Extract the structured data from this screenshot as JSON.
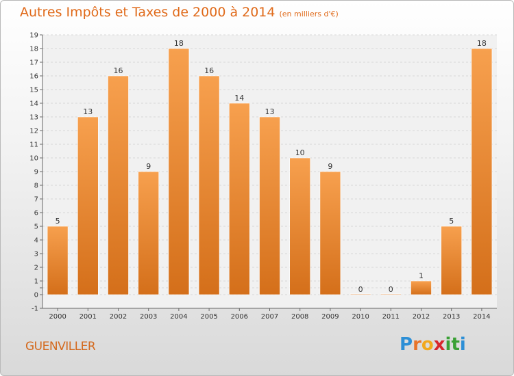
{
  "title": "Autres Impôts et Taxes de 2000 à 2014",
  "unit": "(en milliers d'€)",
  "commune": "GUENVILLER",
  "brand": {
    "letters": [
      "P",
      "r",
      "o",
      "x",
      "i",
      "t",
      "i"
    ],
    "colors": [
      "#2d8fd6",
      "#e8742a",
      "#f2a81e",
      "#d7262d",
      "#3aa035",
      "#3aa035",
      "#2d8fd6"
    ]
  },
  "colors": {
    "bar_light": "#f7a04e",
    "bar_dark": "#d46f1a",
    "title": "#e06a1a"
  },
  "chart_data": {
    "type": "bar",
    "categories": [
      "2000",
      "2001",
      "2002",
      "2003",
      "2004",
      "2005",
      "2006",
      "2007",
      "2008",
      "2009",
      "2010",
      "2011",
      "2012",
      "2013",
      "2014"
    ],
    "values": [
      5,
      13,
      16,
      9,
      18,
      16,
      14,
      13,
      10,
      9,
      0,
      0,
      1,
      5,
      18
    ],
    "value_labels": [
      "5",
      "13",
      "16",
      "9",
      "18",
      "16",
      "14",
      "13",
      "10",
      "9",
      "0",
      "0",
      "1",
      "5",
      "18"
    ],
    "y_ticks": [
      "-1",
      "0",
      "",
      "1",
      "2",
      "3",
      "4",
      "5",
      "6",
      "7",
      "8",
      "9",
      "10",
      "11",
      "12",
      "13",
      "14",
      "15",
      "16",
      "17",
      "18",
      "19"
    ],
    "ylim": [
      -1,
      19
    ],
    "grid": true,
    "xlabel": "",
    "ylabel": ""
  }
}
